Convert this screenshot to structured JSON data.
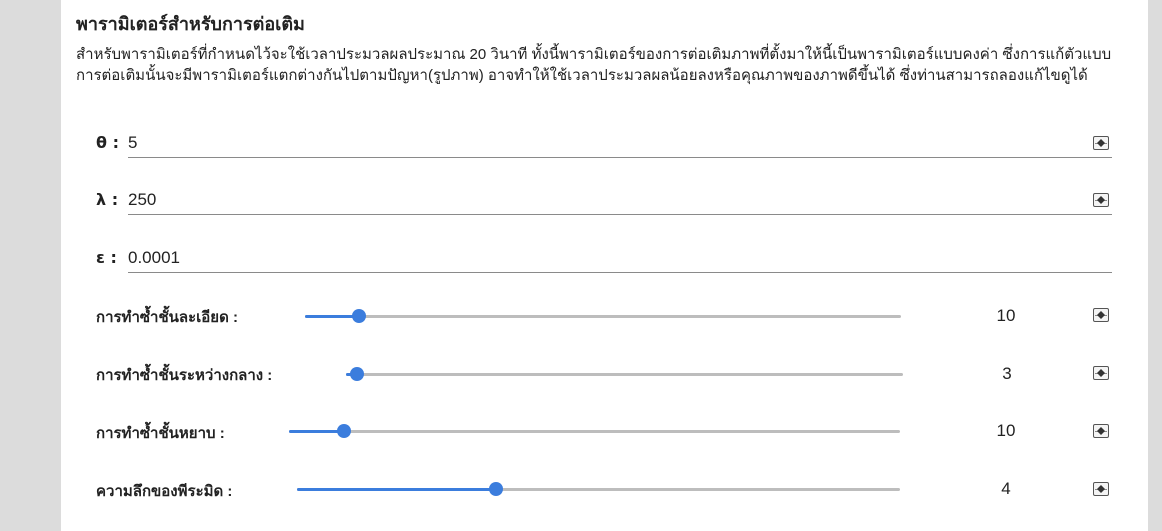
{
  "panel": {
    "title": "พารามิเตอร์สำหรับการต่อเติม",
    "description": "สำหรับพารามิเตอร์ที่กำหนดไว้จะใช้เวลาประมวลผลประมาณ 20 วินาที ทั้งนี้พารามิเตอร์ของการต่อเติมภาพที่ตั้งมาให้นี้เป็นพารามิเตอร์แบบคงค่า ซึ่งการแก้ตัวแบบการต่อเติมนั้นจะมีพารามิเตอร์แตกต่างกันไปตามปัญหา(รูปภาพ) อาจทำให้ใช้เวลาประมวลผลน้อยลงหรือคุณภาพของภาพดีขึ้นได้ ซึ่งท่านสามารถลองแก้ไขดูได้"
  },
  "fields": {
    "theta": {
      "label": "θ :",
      "value": "5"
    },
    "lambda": {
      "label": "λ :",
      "value": "250"
    },
    "epsilon": {
      "label": "ε :",
      "value": "0.0001"
    }
  },
  "sliders": {
    "fine": {
      "label": "การทำซ้ำชั้นละเอียด :",
      "value": "10",
      "fraction": 0.09
    },
    "medium": {
      "label": "การทำซ้ำชั้นระหว่างกลาง :",
      "value": "3",
      "fraction": 0.02
    },
    "coarse": {
      "label": "การทำซ้ำชั้นหยาบ :",
      "value": "10",
      "fraction": 0.09
    },
    "depth": {
      "label": "ความลึกของพีระมิด :",
      "value": "4",
      "fraction": 0.33
    }
  },
  "colors": {
    "accent": "#3b7ddd",
    "track": "#bdbdbd",
    "sidebar": "#dcdcdc"
  }
}
